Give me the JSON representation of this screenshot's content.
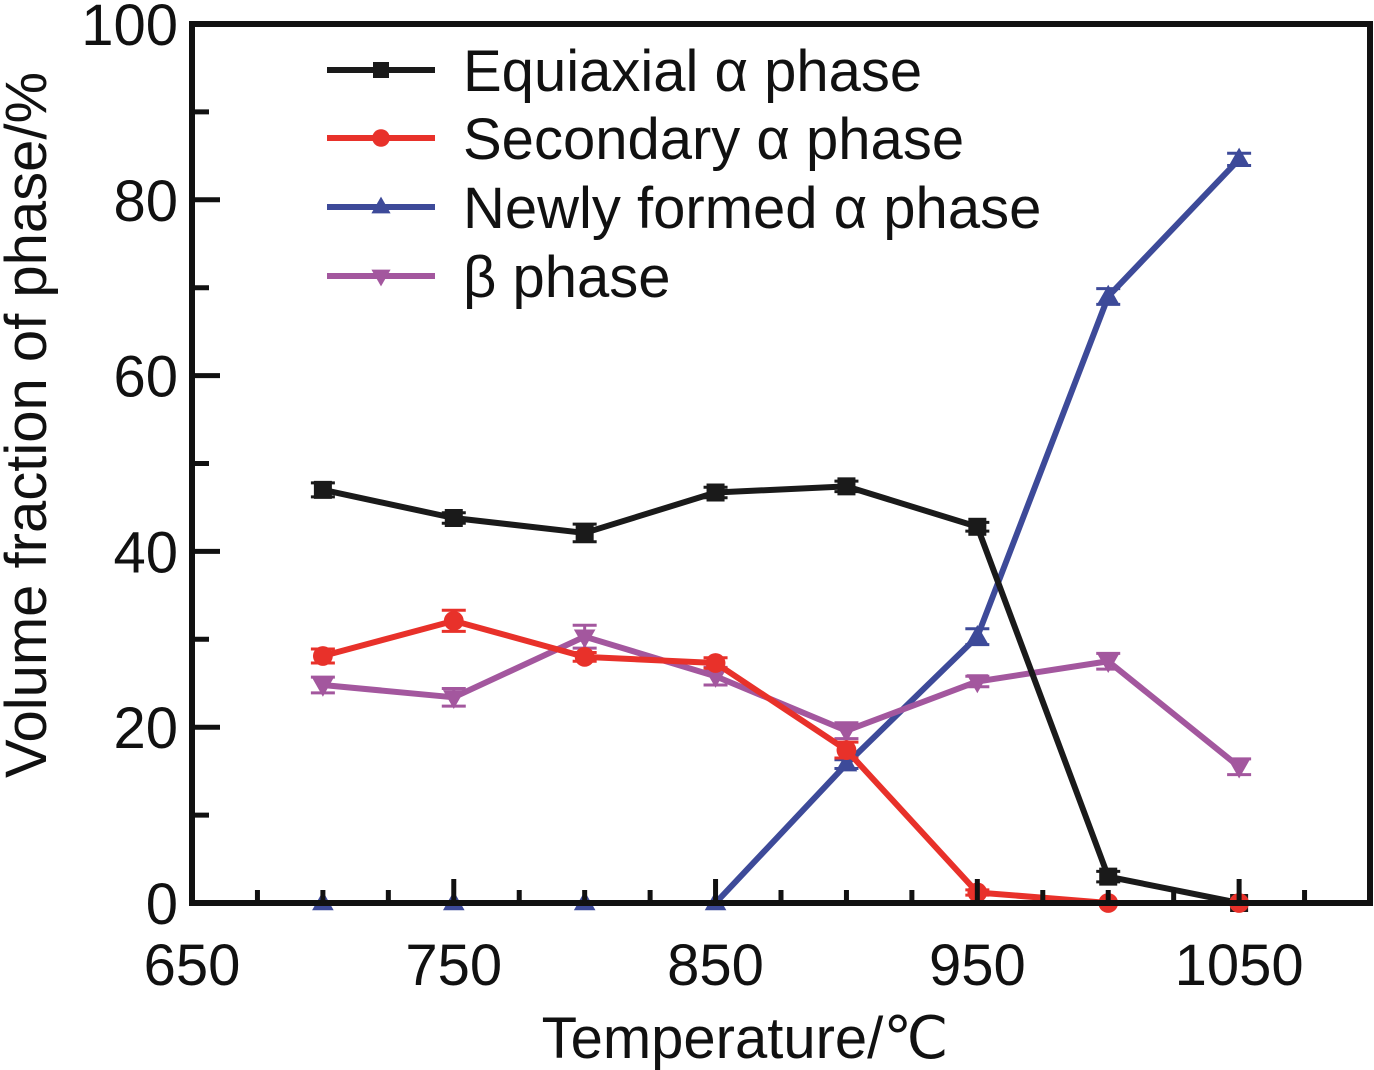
{
  "chart_data": {
    "type": "line",
    "title": "",
    "xlabel": "Temperature/℃",
    "ylabel": "Volume fraction of phase/%",
    "xlim": [
      650,
      1100
    ],
    "ylim": [
      0,
      100
    ],
    "xticks": [
      650,
      750,
      850,
      950,
      1050
    ],
    "xtick_labels": [
      "650",
      "750",
      "850",
      "950",
      "1050"
    ],
    "xminor_step": 25,
    "yticks": [
      0,
      20,
      40,
      60,
      80,
      100
    ],
    "ytick_labels": [
      "0",
      "20",
      "40",
      "60",
      "80",
      "100"
    ],
    "yminor_step": 10,
    "grid": false,
    "legend_position": "top-left",
    "x": [
      700,
      750,
      800,
      850,
      900,
      950,
      1000,
      1050
    ],
    "series": [
      {
        "name": "Equiaxial α phase",
        "color": "#1a1a1a",
        "marker": "square",
        "values": [
          47.0,
          43.8,
          42.1,
          46.7,
          47.4,
          42.8,
          3.0,
          0.0
        ],
        "errors": [
          0.8,
          0.6,
          1.0,
          0.6,
          0.6,
          0.5,
          0.6,
          0.0
        ]
      },
      {
        "name": "Secondary α phase",
        "color": "#e8312a",
        "marker": "circle",
        "values": [
          28.1,
          32.1,
          28.0,
          27.3,
          17.4,
          1.2,
          0.0,
          0.0
        ],
        "errors": [
          0.8,
          1.2,
          0.5,
          0.6,
          0.9,
          0.3,
          0.0,
          0.0
        ]
      },
      {
        "name": "Newly formed α phase",
        "color": "#3d4a99",
        "marker": "triangle-up",
        "values": [
          0.0,
          0.0,
          0.0,
          0.0,
          15.8,
          30.3,
          69.0,
          84.6
        ],
        "errors": [
          0.0,
          0.0,
          0.0,
          0.0,
          0.5,
          0.9,
          0.9,
          0.7
        ]
      },
      {
        "name": "β phase",
        "color": "#a3579e",
        "marker": "triangle-down",
        "values": [
          24.8,
          23.4,
          30.3,
          25.8,
          19.6,
          25.2,
          27.5,
          15.5
        ],
        "errors": [
          0.9,
          1.0,
          1.3,
          1.0,
          0.9,
          0.6,
          0.9,
          0.9
        ]
      }
    ]
  }
}
